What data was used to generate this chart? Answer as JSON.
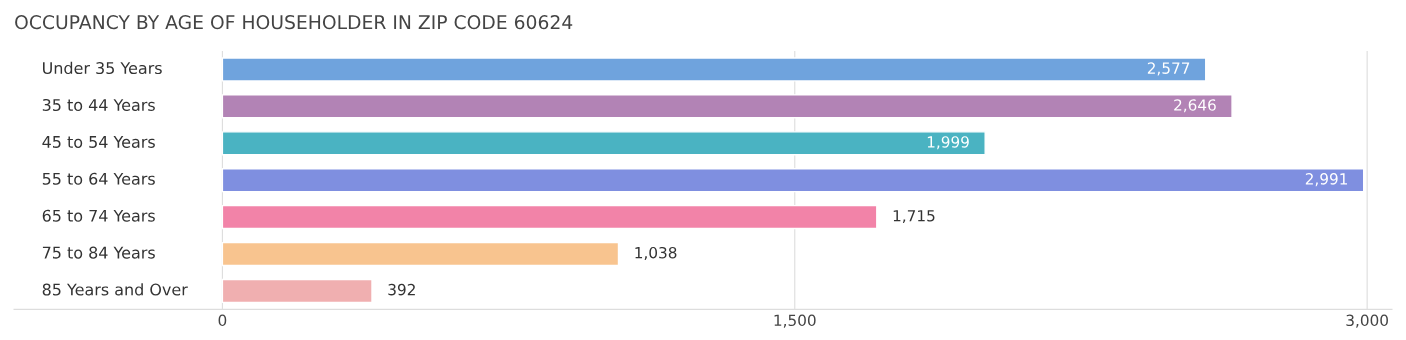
{
  "chart_data": {
    "type": "bar",
    "orientation": "horizontal",
    "title": "OCCUPANCY BY AGE OF HOUSEHOLDER IN ZIP CODE 60624",
    "categories": [
      "Under 35 Years",
      "35 to 44 Years",
      "45 to 54 Years",
      "55 to 64 Years",
      "65 to 74 Years",
      "75 to 84 Years",
      "85 Years and Over"
    ],
    "values": [
      2577,
      2646,
      1999,
      2991,
      1715,
      1038,
      392
    ],
    "value_labels": [
      "2,577",
      "2,646",
      "1,999",
      "2,991",
      "1,715",
      "1,038",
      "392"
    ],
    "colors": [
      "#6fa3dd",
      "#b283b5",
      "#4ab3c2",
      "#7f8fe0",
      "#f283a8",
      "#f8c48f",
      "#f0afb0"
    ],
    "xlim": [
      -546,
      3065
    ],
    "xticks": [
      0,
      {
        "value": 1500,
        "label": "1,500"
      },
      {
        "value": 3000,
        "label": "3,000"
      }
    ],
    "grid": "x"
  }
}
